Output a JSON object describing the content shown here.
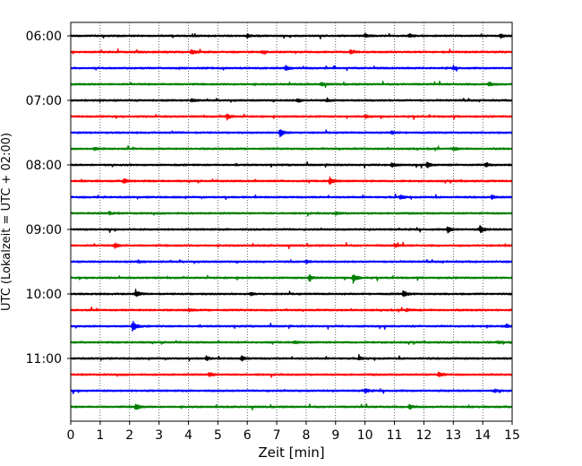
{
  "chart_data": {
    "type": "line",
    "title": "",
    "xlabel": "Zeit  [min]",
    "ylabel": "UTC (Lokalzeit = UTC + 02:00)",
    "xlim": [
      0,
      15
    ],
    "x_ticks": [
      "0",
      "1",
      "2",
      "3",
      "4",
      "5",
      "6",
      "7",
      "8",
      "9",
      "10",
      "11",
      "12",
      "13",
      "14",
      "15"
    ],
    "y_ticks": [
      "06:00",
      "07:00",
      "08:00",
      "09:00",
      "10:00",
      "11:00"
    ],
    "grid": "vertical dotted",
    "colors": [
      "#000000",
      "#ff0000",
      "#0000ff",
      "#008000"
    ],
    "trace_count": 24,
    "trace_start": "06:00",
    "trace_interval_min": 15,
    "events": [
      {
        "trace": 0,
        "t": 6.0,
        "amp": 0.35
      },
      {
        "trace": 0,
        "t": 10.0,
        "amp": 0.4
      },
      {
        "trace": 0,
        "t": 11.5,
        "amp": 0.35
      },
      {
        "trace": 0,
        "t": 14.6,
        "amp": 0.4
      },
      {
        "trace": 1,
        "t": 4.1,
        "amp": 0.5
      },
      {
        "trace": 1,
        "t": 6.5,
        "amp": 0.3
      },
      {
        "trace": 1,
        "t": 9.5,
        "amp": 0.3
      },
      {
        "trace": 2,
        "t": 7.3,
        "amp": 0.5
      },
      {
        "trace": 2,
        "t": 13.0,
        "amp": 0.3
      },
      {
        "trace": 3,
        "t": 8.5,
        "amp": 0.35
      },
      {
        "trace": 3,
        "t": 14.2,
        "amp": 0.45
      },
      {
        "trace": 4,
        "t": 4.1,
        "amp": 0.35
      },
      {
        "trace": 4,
        "t": 7.7,
        "amp": 0.35
      },
      {
        "trace": 4,
        "t": 8.7,
        "amp": 0.25
      },
      {
        "trace": 5,
        "t": 5.3,
        "amp": 0.7
      },
      {
        "trace": 5,
        "t": 10.0,
        "amp": 0.3
      },
      {
        "trace": 6,
        "t": 7.1,
        "amp": 1.0
      },
      {
        "trace": 6,
        "t": 10.9,
        "amp": 0.4
      },
      {
        "trace": 7,
        "t": 0.8,
        "amp": 0.3
      },
      {
        "trace": 7,
        "t": 13.0,
        "amp": 0.35
      },
      {
        "trace": 8,
        "t": 10.9,
        "amp": 0.5
      },
      {
        "trace": 8,
        "t": 12.1,
        "amp": 0.6
      },
      {
        "trace": 8,
        "t": 14.1,
        "amp": 0.5
      },
      {
        "trace": 9,
        "t": 1.8,
        "amp": 0.55
      },
      {
        "trace": 9,
        "t": 8.8,
        "amp": 0.9
      },
      {
        "trace": 10,
        "t": 11.2,
        "amp": 0.45
      },
      {
        "trace": 10,
        "t": 14.3,
        "amp": 0.4
      },
      {
        "trace": 11,
        "t": 1.3,
        "amp": 0.3
      },
      {
        "trace": 11,
        "t": 9.0,
        "amp": 0.3
      },
      {
        "trace": 12,
        "t": 12.8,
        "amp": 0.7
      },
      {
        "trace": 12,
        "t": 13.9,
        "amp": 0.8
      },
      {
        "trace": 13,
        "t": 1.5,
        "amp": 0.5
      },
      {
        "trace": 13,
        "t": 11.0,
        "amp": 0.35
      },
      {
        "trace": 14,
        "t": 2.3,
        "amp": 0.3
      },
      {
        "trace": 14,
        "t": 8.0,
        "amp": 0.3
      },
      {
        "trace": 15,
        "t": 8.1,
        "amp": 0.7
      },
      {
        "trace": 15,
        "t": 9.6,
        "amp": 1.1
      },
      {
        "trace": 16,
        "t": 2.2,
        "amp": 0.75
      },
      {
        "trace": 16,
        "t": 11.3,
        "amp": 0.75
      },
      {
        "trace": 16,
        "t": 6.1,
        "amp": 0.3
      },
      {
        "trace": 17,
        "t": 4.0,
        "amp": 0.3
      },
      {
        "trace": 17,
        "t": 11.4,
        "amp": 0.35
      },
      {
        "trace": 18,
        "t": 2.1,
        "amp": 1.3
      },
      {
        "trace": 18,
        "t": 14.8,
        "amp": 0.35
      },
      {
        "trace": 19,
        "t": 7.6,
        "amp": 0.35
      },
      {
        "trace": 19,
        "t": 14.5,
        "amp": 0.3
      },
      {
        "trace": 20,
        "t": 4.6,
        "amp": 0.4
      },
      {
        "trace": 20,
        "t": 5.8,
        "amp": 0.55
      },
      {
        "trace": 20,
        "t": 9.8,
        "amp": 0.3
      },
      {
        "trace": 21,
        "t": 4.7,
        "amp": 0.45
      },
      {
        "trace": 21,
        "t": 12.5,
        "amp": 0.55
      },
      {
        "trace": 22,
        "t": 10.0,
        "amp": 0.45
      },
      {
        "trace": 22,
        "t": 14.4,
        "amp": 0.3
      },
      {
        "trace": 23,
        "t": 2.2,
        "amp": 0.75
      },
      {
        "trace": 23,
        "t": 11.5,
        "amp": 0.55
      }
    ]
  }
}
